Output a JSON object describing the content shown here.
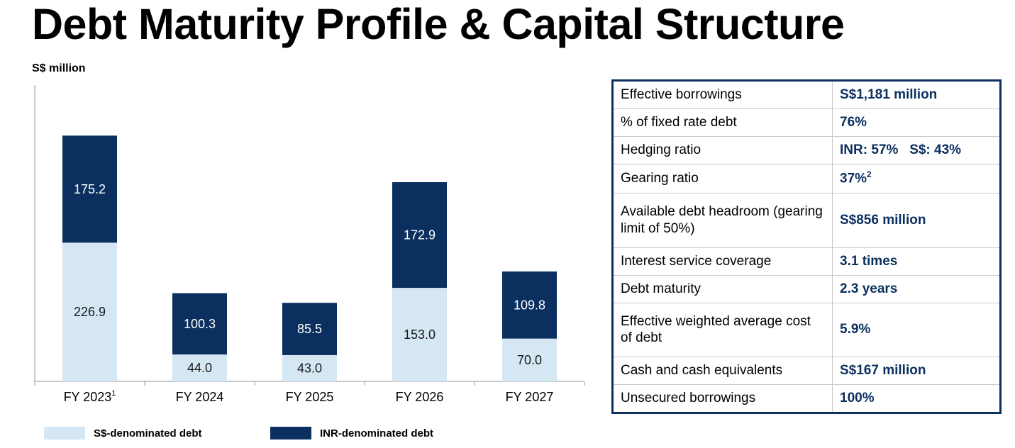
{
  "title": "Debt Maturity Profile & Capital Structure",
  "unit_label": "S$ million",
  "colors": {
    "sgd": "#d6e7f4",
    "inr": "#0b2f5e",
    "navy_text": "#0b2f5e"
  },
  "chart_data": {
    "type": "bar",
    "stacked": true,
    "categories": [
      "FY 2023",
      "FY 2024",
      "FY 2025",
      "FY 2026",
      "FY 2027"
    ],
    "category_superscripts": [
      "1",
      "",
      "",
      "",
      ""
    ],
    "series": [
      {
        "name": "S$-denominated debt",
        "values": [
          226.9,
          44.0,
          43.0,
          153.0,
          70.0
        ]
      },
      {
        "name": "INR-denominated debt",
        "values": [
          175.2,
          100.3,
          85.5,
          172.9,
          109.8
        ]
      }
    ],
    "value_labels": [
      [
        "226.9",
        "44.0",
        "43.0",
        "153.0",
        "70.0"
      ],
      [
        "175.2",
        "100.3",
        "85.5",
        "172.9",
        "109.8"
      ]
    ],
    "ylabel": "S$ million",
    "ylim": [
      0,
      450
    ],
    "grid": false,
    "legend_position": "bottom"
  },
  "legend": {
    "sgd_label": "S$-denominated debt",
    "inr_label": "INR-denominated debt"
  },
  "table": {
    "rows": [
      {
        "key": "Effective borrowings",
        "value": "S$1,181 million",
        "sup": ""
      },
      {
        "key": "% of fixed rate debt",
        "value": "76%",
        "sup": ""
      },
      {
        "key": "Hedging ratio",
        "value": "INR: 57%   S$: 43%",
        "sup": ""
      },
      {
        "key": "Gearing ratio",
        "value": "37%",
        "sup": "2"
      },
      {
        "key": "Available debt headroom (gearing limit of 50%)",
        "value": "S$856 million",
        "sup": ""
      },
      {
        "key": "Interest service coverage",
        "value": "3.1 times",
        "sup": ""
      },
      {
        "key": "Debt maturity",
        "value": "2.3 years",
        "sup": ""
      },
      {
        "key": "Effective weighted average cost of debt",
        "value": "5.9%",
        "sup": ""
      },
      {
        "key": "Cash and cash equivalents",
        "value": "S$167 million",
        "sup": ""
      },
      {
        "key": "Unsecured borrowings",
        "value": "100%",
        "sup": ""
      }
    ]
  }
}
